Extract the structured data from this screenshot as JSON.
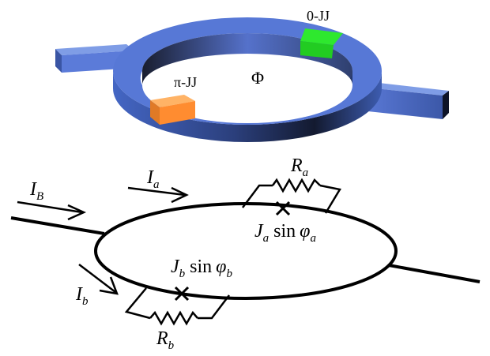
{
  "device": {
    "junction_zero_label": "0-JJ",
    "junction_pi_label": "π-JJ",
    "flux_label": "Φ",
    "colors": {
      "ring": "#5577d6",
      "ring_dark": "#1a2440",
      "zero_junction": "#2ee82e",
      "pi_junction": "#ff9a40"
    }
  },
  "circuit": {
    "current_bias": {
      "base": "I",
      "sub": "B"
    },
    "current_a": {
      "base": "I",
      "sub": "a"
    },
    "current_b": {
      "base": "I",
      "sub": "b"
    },
    "resistor_a": {
      "base": "R",
      "sub": "a"
    },
    "resistor_b": {
      "base": "R",
      "sub": "b"
    },
    "junction_a": {
      "J": "J",
      "J_sub": "a",
      "fn": "sin",
      "phi": "φ",
      "phi_sub": "a"
    },
    "junction_b": {
      "J": "J",
      "J_sub": "b",
      "fn": "sin",
      "phi": "φ",
      "phi_sub": "b"
    }
  }
}
